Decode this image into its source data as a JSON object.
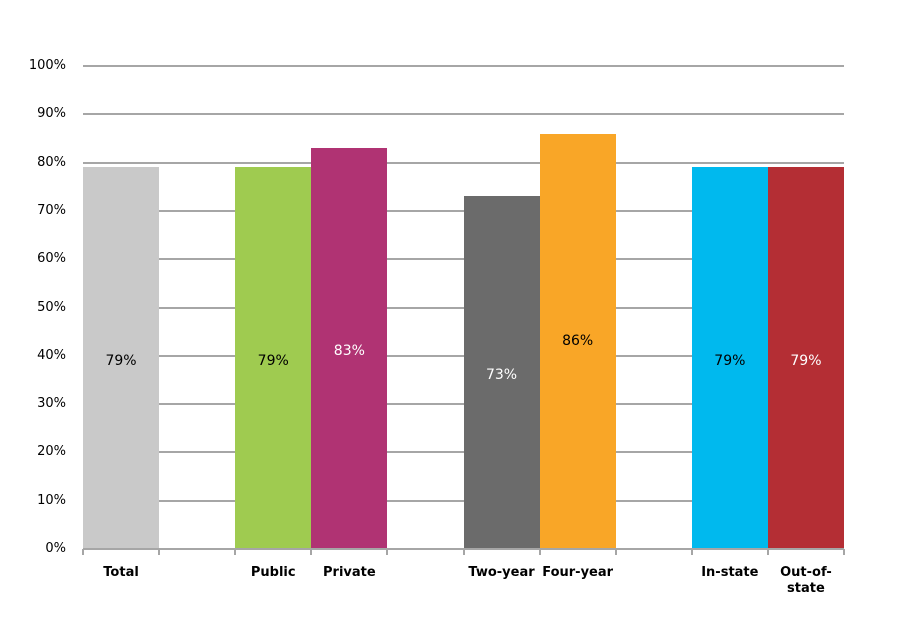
{
  "chart_data": {
    "type": "bar",
    "title": "",
    "xlabel": "",
    "ylabel": "",
    "ylim": [
      0,
      100
    ],
    "y_ticks": [
      "0%",
      "10%",
      "20%",
      "30%",
      "40%",
      "50%",
      "60%",
      "70%",
      "80%",
      "90%",
      "100%"
    ],
    "grid": true,
    "legend": null,
    "slots": 10,
    "categories": [
      "Total",
      "Public",
      "Private",
      "Two-year",
      "Four-year",
      "In-state",
      "Out-of-state"
    ],
    "values": [
      79,
      79,
      83,
      73,
      86,
      79,
      79
    ],
    "bars": [
      {
        "category": "Total",
        "label": "Total",
        "label_lines": [
          "Total"
        ],
        "value": 79,
        "display": "79%",
        "slot": 0,
        "color": "#c9c9c9",
        "label_color": "#000000",
        "label_y_pct": 39
      },
      {
        "category": "Public",
        "label": "Public",
        "label_lines": [
          "Public"
        ],
        "value": 79,
        "display": "79%",
        "slot": 2,
        "color": "#9fcb50",
        "label_color": "#000000",
        "label_y_pct": 39
      },
      {
        "category": "Private",
        "label": "Private",
        "label_lines": [
          "Private"
        ],
        "value": 83,
        "display": "83%",
        "slot": 3,
        "color": "#b03373",
        "label_color": "#ffffff",
        "label_y_pct": 41
      },
      {
        "category": "Two-year",
        "label": "Two-year",
        "label_lines": [
          "Two-year"
        ],
        "value": 73,
        "display": "73%",
        "slot": 5,
        "color": "#6b6b6b",
        "label_color": "#ffffff",
        "label_y_pct": 36
      },
      {
        "category": "Four-year",
        "label": "Four-year",
        "label_lines": [
          "Four-year"
        ],
        "value": 86,
        "display": "86%",
        "slot": 6,
        "color": "#f9a627",
        "label_color": "#000000",
        "label_y_pct": 43
      },
      {
        "category": "In-state",
        "label": "In-state",
        "label_lines": [
          "In-state"
        ],
        "value": 79,
        "display": "79%",
        "slot": 8,
        "color": "#00b9ee",
        "label_color": "#000000",
        "label_y_pct": 39
      },
      {
        "category": "Out-of-state",
        "label": "Out-of-state",
        "label_lines": [
          "Out-of-",
          "state"
        ],
        "value": 79,
        "display": "79%",
        "slot": 9,
        "color": "#b42e34",
        "label_color": "#ffffff",
        "label_y_pct": 39
      }
    ]
  }
}
